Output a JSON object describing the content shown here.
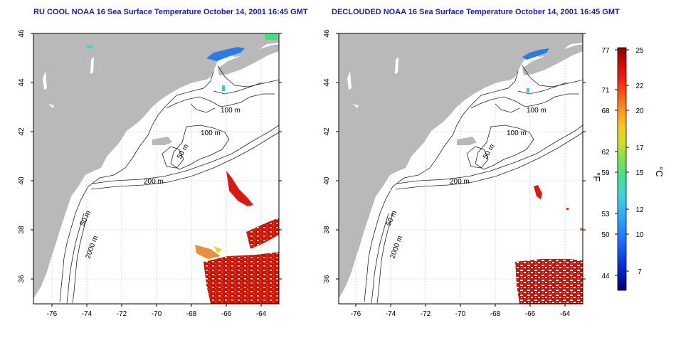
{
  "panels": [
    {
      "title": "RU COOL NOAA 16 Sea Surface Temperature October 14, 2001 16:45 GMT",
      "contour_labels": [
        "100 m",
        "100 m",
        "50 m",
        "200 m",
        "50 m",
        "2000 m"
      ]
    },
    {
      "title": "DECLOUDED NOAA 16 Sea Surface Temperature October 14, 2001 16:45 GMT",
      "contour_labels": [
        "100 m",
        "100 m",
        "50 m",
        "200 m",
        "50 m",
        "2000 m"
      ]
    }
  ],
  "lat_ticks": [
    "46",
    "44",
    "42",
    "40",
    "38",
    "36"
  ],
  "lon_ticks": [
    "-76",
    "-74",
    "-72",
    "-70",
    "-68",
    "-66",
    "-64"
  ],
  "colorbar": {
    "f_label": "°F",
    "c_label": "°C",
    "f_ticks": [
      "77",
      "71",
      "68",
      "62",
      "59",
      "53",
      "50",
      "44"
    ],
    "c_ticks": [
      "25",
      "22",
      "20",
      "17",
      "15",
      "12",
      "10",
      "7"
    ],
    "colors": [
      "#08006e",
      "#0022cc",
      "#1b6cff",
      "#2aa8ff",
      "#3ad2e0",
      "#40e0a0",
      "#7de04a",
      "#c8e02a",
      "#f0d020",
      "#ffa020",
      "#ff6010",
      "#f02010",
      "#c80a0a",
      "#8a0000"
    ]
  }
}
